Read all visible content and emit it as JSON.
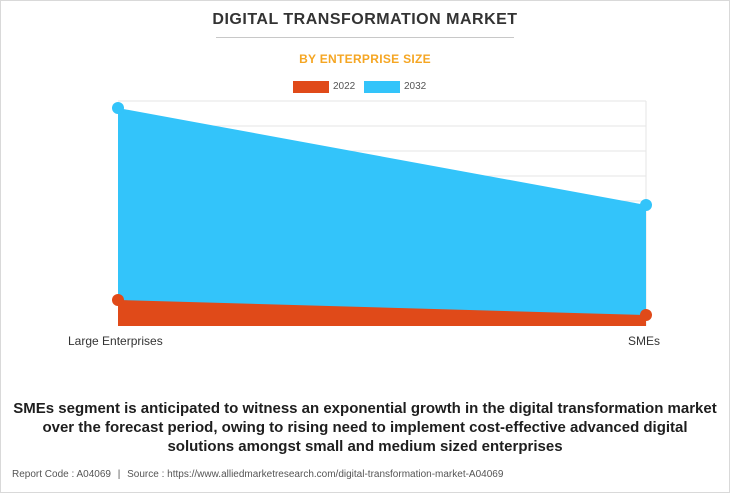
{
  "chart_data": {
    "type": "area",
    "title": "DIGITAL TRANSFORMATION MARKET",
    "subtitle": "BY ENTERPRISE SIZE",
    "categories": [
      "Large Enterprises",
      "SMEs"
    ],
    "series": [
      {
        "name": "2022",
        "color": "#e04a19",
        "values": [
          26,
          11
        ]
      },
      {
        "name": "2032",
        "color": "#33c4fa",
        "values": [
          218,
          121
        ]
      }
    ],
    "ylim": [
      0,
      225
    ],
    "grid": true,
    "legend": "top-center"
  },
  "caption": "SMEs segment is anticipated to witness an exponential growth in the digital transformation market over the forecast period, owing to rising need to implement cost-effective advanced digital solutions amongst small and medium sized enterprises",
  "footer": {
    "report_code": "Report Code : A04069",
    "separator": "|",
    "source": "Source : https://www.alliedmarketresearch.com/digital-transformation-market-A04069"
  }
}
